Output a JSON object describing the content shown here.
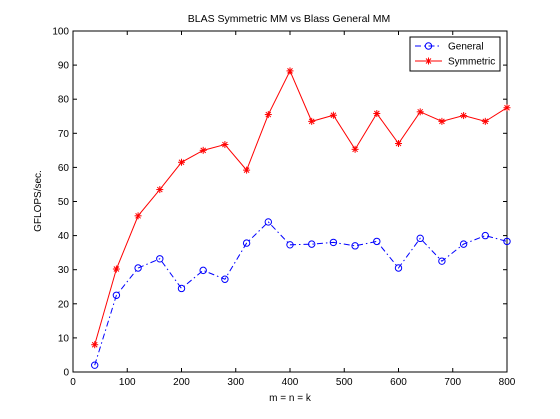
{
  "chart_data": {
    "type": "line",
    "title": "BLAS Symmetric MM vs Blass General MM",
    "xlabel": "m = n = k",
    "ylabel": "GFLOPS/sec.",
    "xlim": [
      0,
      800
    ],
    "ylim": [
      0,
      100
    ],
    "xticks": [
      0,
      100,
      200,
      300,
      400,
      500,
      600,
      700,
      800
    ],
    "yticks": [
      0,
      10,
      20,
      30,
      40,
      50,
      60,
      70,
      80,
      90,
      100
    ],
    "grid": false,
    "legend_position": "top-right",
    "x": [
      40,
      80,
      120,
      160,
      200,
      240,
      280,
      320,
      360,
      400,
      440,
      480,
      520,
      560,
      600,
      640,
      680,
      720,
      760,
      800
    ],
    "series": [
      {
        "name": "General",
        "color": "#0000ff",
        "line_style": "dash-dot",
        "marker": "circle",
        "values": [
          2,
          22.5,
          30.5,
          33.2,
          24.5,
          29.8,
          27.2,
          37.8,
          44,
          37.3,
          37.5,
          38,
          37,
          38.3,
          30.5,
          39.2,
          32.5,
          37.5,
          40,
          38.3
        ]
      },
      {
        "name": "Symmetric",
        "color": "#ff0000",
        "line_style": "solid",
        "marker": "asterisk",
        "values": [
          8,
          30.2,
          45.8,
          53.5,
          61.5,
          65,
          66.7,
          59.2,
          75.5,
          88.3,
          73.5,
          75.3,
          65.3,
          75.8,
          67,
          76.3,
          73.5,
          75.2,
          73.5,
          77.5
        ]
      }
    ]
  }
}
